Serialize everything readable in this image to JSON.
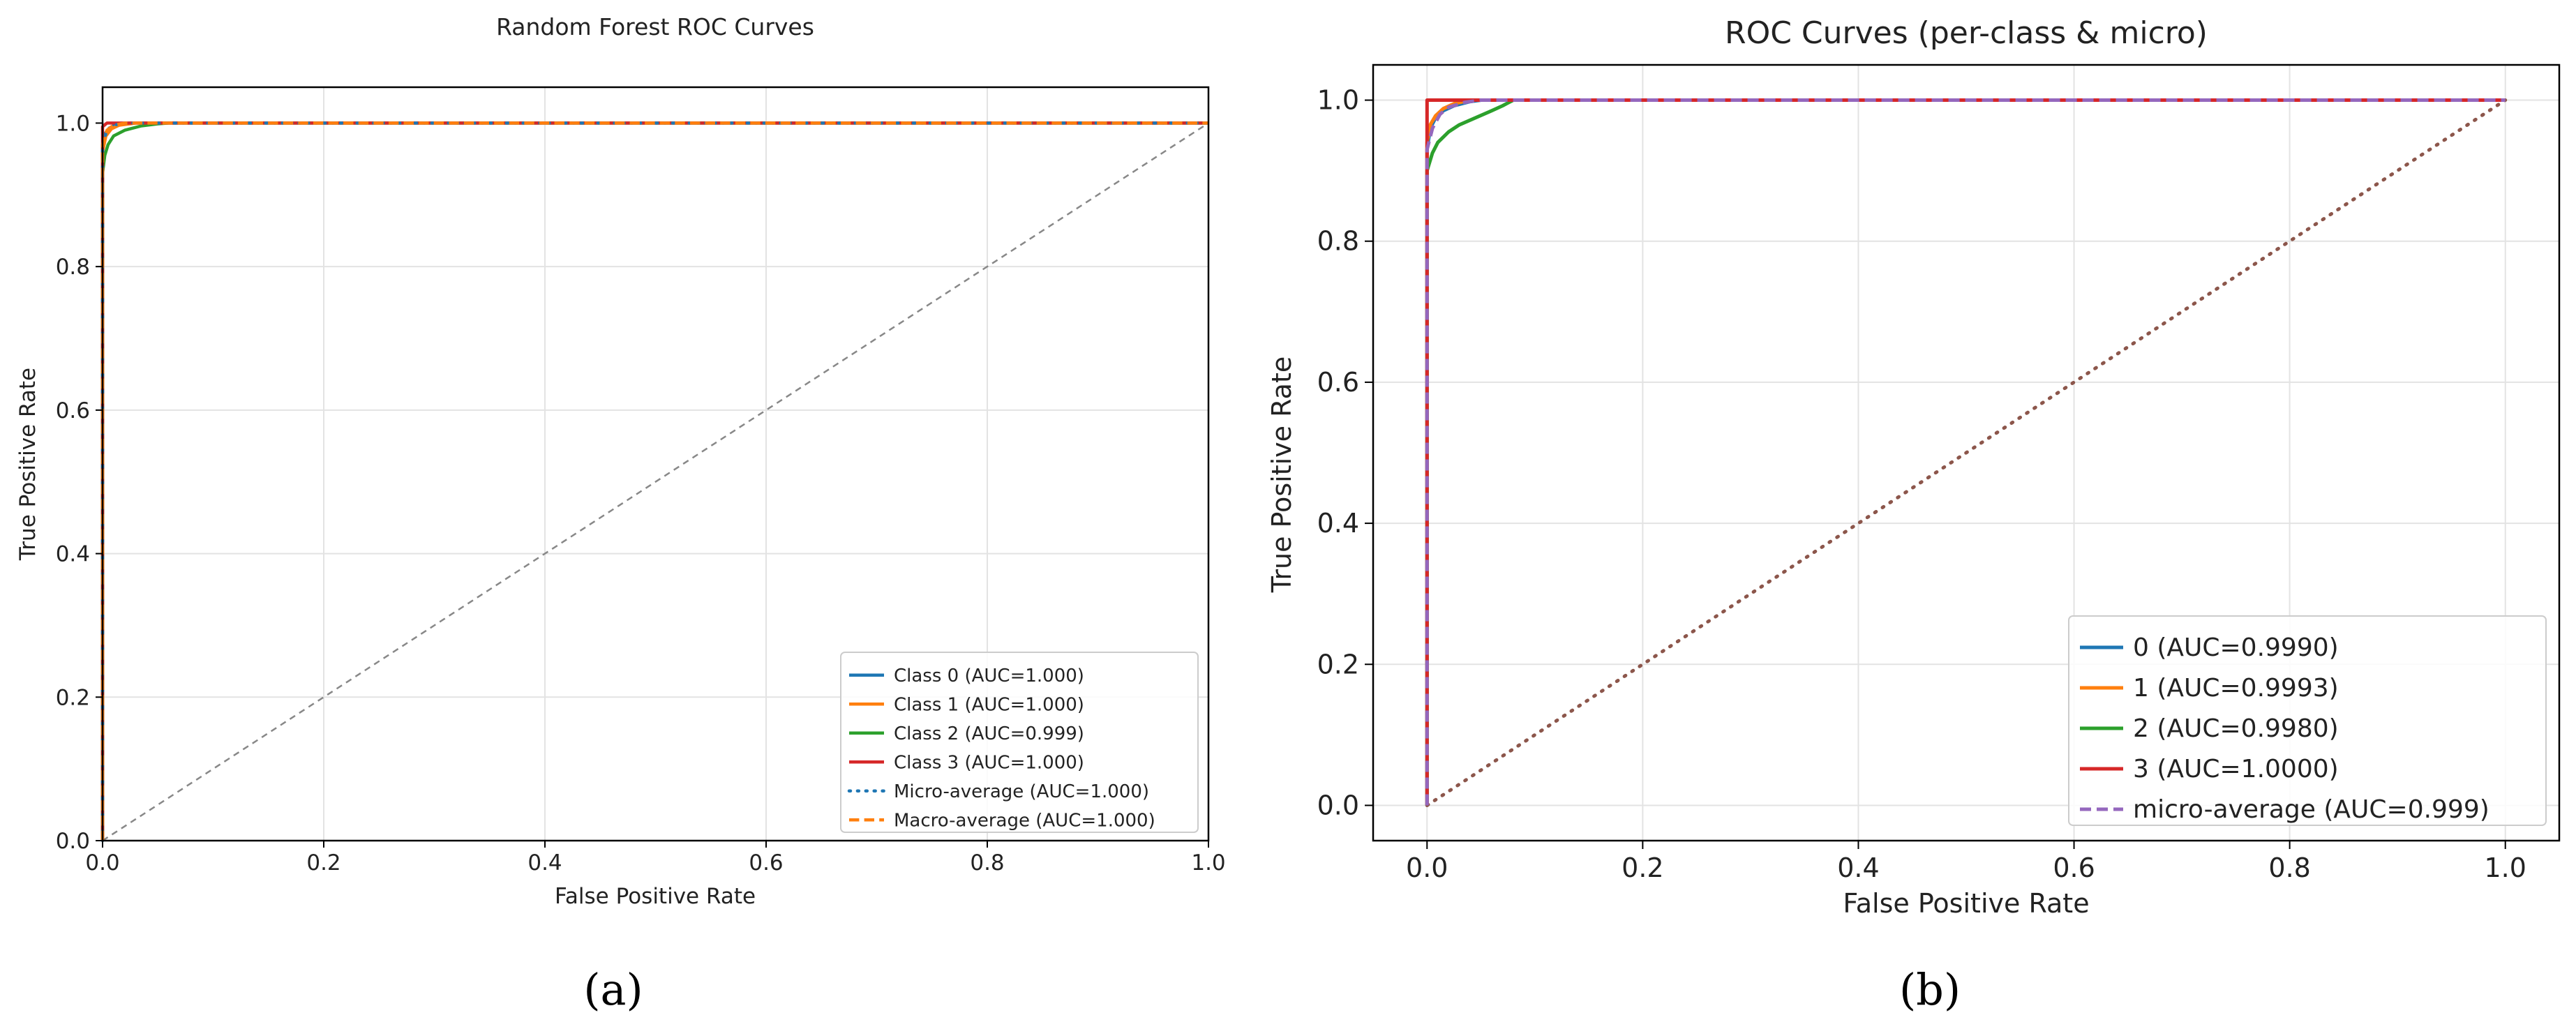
{
  "captions": {
    "a": "(a)",
    "b": "(b)"
  },
  "chart_data": [
    {
      "id": "a",
      "type": "line",
      "title": "Random Forest ROC Curves",
      "xlabel": "False Positive Rate",
      "ylabel": "True Positive Rate",
      "xlim": [
        0,
        1
      ],
      "ylim": [
        0,
        1.05
      ],
      "xticks": [
        "0.0",
        "0.2",
        "0.4",
        "0.6",
        "0.8",
        "1.0"
      ],
      "yticks": [
        "0.0",
        "0.2",
        "0.4",
        "0.6",
        "0.8",
        "1.0"
      ],
      "grid": true,
      "legend_position": "bottom-right",
      "series": [
        {
          "name": "Class 0 (AUC=1.000)",
          "color": "#1f77b4",
          "style": "solid",
          "x": [
            0,
            0,
            0.002,
            0.006,
            0.012,
            0.025,
            1
          ],
          "y": [
            0,
            0.97,
            0.985,
            0.993,
            0.998,
            1.0,
            1.0
          ]
        },
        {
          "name": "Class 1 (AUC=1.000)",
          "color": "#ff7f0e",
          "style": "solid",
          "x": [
            0,
            0,
            0.003,
            0.008,
            0.015,
            0.03,
            1
          ],
          "y": [
            0,
            0.96,
            0.982,
            0.992,
            0.997,
            1.0,
            1.0
          ]
        },
        {
          "name": "Class 2 (AUC=0.999)",
          "color": "#2ca02c",
          "style": "solid",
          "x": [
            0,
            0,
            0.002,
            0.005,
            0.01,
            0.02,
            0.035,
            0.05,
            0.06,
            1
          ],
          "y": [
            0,
            0.93,
            0.955,
            0.97,
            0.982,
            0.99,
            0.996,
            0.999,
            1.0,
            1.0
          ]
        },
        {
          "name": "Class 3 (AUC=1.000)",
          "color": "#d62728",
          "style": "solid",
          "x": [
            0,
            0,
            0.004,
            1
          ],
          "y": [
            0,
            0.995,
            1.0,
            1.0
          ]
        },
        {
          "name": "Micro-average (AUC=1.000)",
          "color": "#1f77b4",
          "style": "dotted",
          "x": [
            0,
            0,
            0.004,
            0.01,
            0.02,
            1
          ],
          "y": [
            0,
            0.97,
            0.99,
            0.997,
            1.0,
            1.0
          ]
        },
        {
          "name": "Macro-average (AUC=1.000)",
          "color": "#ff7f0e",
          "style": "dashed",
          "x": [
            0,
            0,
            0.004,
            0.01,
            0.02,
            1
          ],
          "y": [
            0,
            0.97,
            0.99,
            0.997,
            1.0,
            1.0
          ]
        },
        {
          "name": "chance",
          "color": "#888888",
          "style": "thin-dashed",
          "legend": false,
          "x": [
            0,
            1
          ],
          "y": [
            0,
            1
          ]
        }
      ]
    },
    {
      "id": "b",
      "type": "line",
      "title": "ROC Curves (per-class & micro)",
      "xlabel": "False Positive Rate",
      "ylabel": "True Positive Rate",
      "xlim": [
        -0.05,
        1.05
      ],
      "ylim": [
        -0.05,
        1.05
      ],
      "xticks": [
        "0.0",
        "0.2",
        "0.4",
        "0.6",
        "0.8",
        "1.0"
      ],
      "yticks": [
        "0.0",
        "0.2",
        "0.4",
        "0.6",
        "0.8",
        "1.0"
      ],
      "grid": true,
      "legend_position": "bottom-right",
      "series": [
        {
          "name": "0 (AUC=0.9990)",
          "color": "#1f77b4",
          "style": "solid",
          "x": [
            0,
            0,
            0.003,
            0.008,
            0.015,
            0.025,
            0.04,
            0.05,
            1
          ],
          "y": [
            0,
            0.93,
            0.96,
            0.975,
            0.985,
            0.992,
            0.998,
            1.0,
            1.0
          ]
        },
        {
          "name": "1 (AUC=0.9993)",
          "color": "#ff7f0e",
          "style": "solid",
          "x": [
            0,
            0,
            0.003,
            0.008,
            0.015,
            0.025,
            0.04,
            1
          ],
          "y": [
            0,
            0.94,
            0.965,
            0.978,
            0.988,
            0.995,
            1.0,
            1.0
          ]
        },
        {
          "name": "2 (AUC=0.9980)",
          "color": "#2ca02c",
          "style": "solid",
          "x": [
            0,
            0,
            0.005,
            0.01,
            0.02,
            0.03,
            0.045,
            0.06,
            0.07,
            0.08,
            1
          ],
          "y": [
            0,
            0.9,
            0.925,
            0.94,
            0.955,
            0.965,
            0.975,
            0.985,
            0.992,
            1.0,
            1.0
          ]
        },
        {
          "name": "3 (AUC=1.0000)",
          "color": "#d62728",
          "style": "solid",
          "x": [
            0,
            0,
            0.01,
            1
          ],
          "y": [
            0,
            1.0,
            1.0,
            1.0
          ]
        },
        {
          "name": "micro-average (AUC=0.999)",
          "color": "#9467bd",
          "style": "dashed",
          "x": [
            0,
            0,
            0.005,
            0.012,
            0.02,
            0.035,
            0.05,
            1
          ],
          "y": [
            0,
            0.93,
            0.96,
            0.98,
            0.99,
            0.997,
            1.0,
            1.0
          ]
        },
        {
          "name": "chance",
          "color": "#8c564b",
          "style": "dotted",
          "legend": false,
          "x": [
            0,
            1
          ],
          "y": [
            0,
            1
          ]
        }
      ]
    }
  ]
}
